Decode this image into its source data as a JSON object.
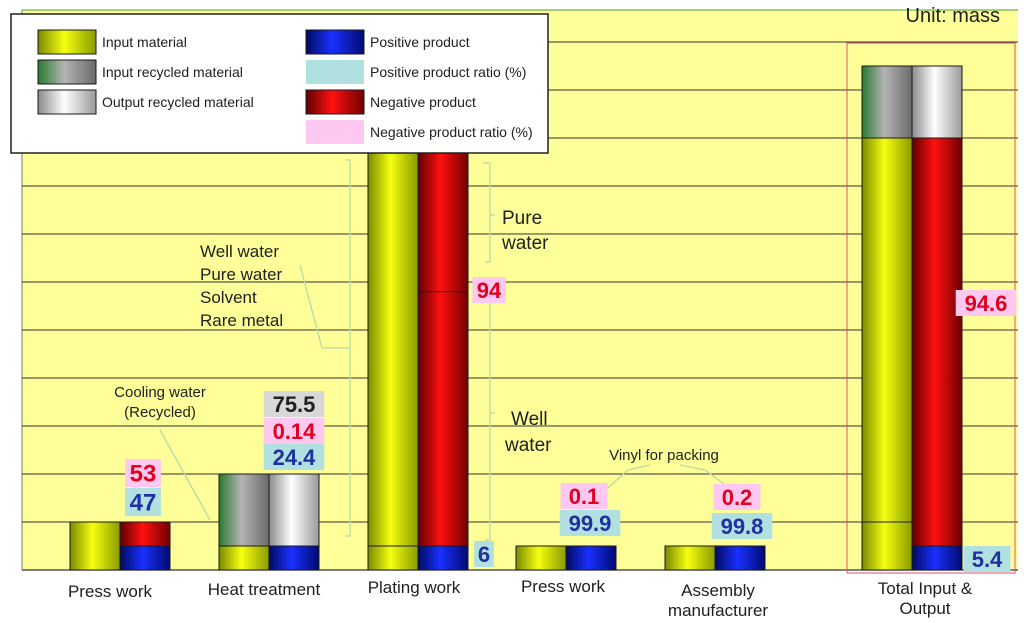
{
  "chart_data": {
    "type": "bar",
    "unit_label": "Unit: mass",
    "categories": [
      "Press work",
      "Heat treatment",
      "Plating work",
      "Press work",
      "Assembly manufacturer",
      "Total Input & Output"
    ],
    "y_gridline_step": 1,
    "ylim": [
      0,
      11
    ],
    "stacks": [
      {
        "category": "Press work",
        "input": [
          {
            "series": "Input material",
            "value": 1.0
          }
        ],
        "output": [
          {
            "series": "Positive product",
            "value": 0.5
          },
          {
            "series": "Negative product",
            "value": 0.5
          }
        ],
        "labels": {
          "negative_ratio": "53",
          "positive_ratio": "47"
        },
        "annotation": [
          "Cooling water",
          "(Recycled)"
        ]
      },
      {
        "category": "Heat treatment",
        "input": [
          {
            "series": "Input material",
            "value": 0.5
          },
          {
            "series": "Input recycled material",
            "value": 1.5
          }
        ],
        "output": [
          {
            "series": "Positive product",
            "value": 0.5
          },
          {
            "series": "Output recycled material",
            "value": 1.5
          }
        ],
        "labels": {
          "output_recycled": "75.5",
          "negative_ratio": "0.14",
          "positive_ratio": "24.4"
        }
      },
      {
        "category": "Plating work",
        "input": [
          {
            "series": "Input material",
            "value": 0.5
          },
          {
            "series": "Input material",
            "value": 8.3
          }
        ],
        "output": [
          {
            "series": "Positive product",
            "value": 0.5
          },
          {
            "series": "Negative product",
            "value": 5.3
          },
          {
            "series": "Negative product",
            "value": 3.0
          }
        ],
        "labels": {
          "negative_ratio": "94",
          "positive_ratio": "6"
        },
        "annotation": [
          "Well water",
          "Pure water",
          "Solvent",
          "Rare metal"
        ],
        "right_annotations": [
          [
            "Pure",
            "water"
          ],
          [
            "Well",
            "water"
          ]
        ]
      },
      {
        "category": "Press work",
        "input": [
          {
            "series": "Input material",
            "value": 0.5
          }
        ],
        "output": [
          {
            "series": "Positive product",
            "value": 0.5
          }
        ],
        "labels": {
          "negative_ratio": "0.1",
          "positive_ratio": "99.9"
        }
      },
      {
        "category": "Assembly manufacturer",
        "input": [
          {
            "series": "Input material",
            "value": 0.5
          }
        ],
        "output": [
          {
            "series": "Positive product",
            "value": 0.5
          }
        ],
        "labels": {
          "negative_ratio": "0.2",
          "positive_ratio": "99.8"
        },
        "annotation": [
          "Vinyl for packing"
        ]
      },
      {
        "category": "Total Input & Output",
        "input": [
          {
            "series": "Input material",
            "value": 1.0
          },
          {
            "series": "Input material",
            "value": 8.0
          },
          {
            "series": "Input recycled material",
            "value": 1.5
          }
        ],
        "output": [
          {
            "series": "Positive product",
            "value": 0.5
          },
          {
            "series": "Negative product",
            "value": 8.5
          },
          {
            "series": "Output recycled material",
            "value": 1.5
          }
        ],
        "labels": {
          "negative_ratio": "94.6",
          "positive_ratio": "5.4"
        }
      }
    ],
    "legend": {
      "placement": "top-left",
      "items": [
        {
          "name": "Input material",
          "color": "#e8f000"
        },
        {
          "name": "Input recycled material",
          "color": "#8a8a8a"
        },
        {
          "name": "Output recycled material",
          "color": "#ececec"
        },
        {
          "name": "Positive product",
          "color": "#1020c0"
        },
        {
          "name": "Positive product ratio (%)",
          "color": "#b0e0e0"
        },
        {
          "name": "Negative product",
          "color": "#d00000"
        },
        {
          "name": "Negative product ratio (%)",
          "color": "#ffc8f0"
        }
      ]
    },
    "colors": {
      "plot_bg": "#ffff99",
      "positive_text": "#2030a0",
      "negative_text": "#e00020",
      "recycled_text": "#202020",
      "positive_box": "#b0e0e0",
      "negative_box": "#ffc8f0",
      "recycled_box": "#d8d8d8"
    }
  }
}
